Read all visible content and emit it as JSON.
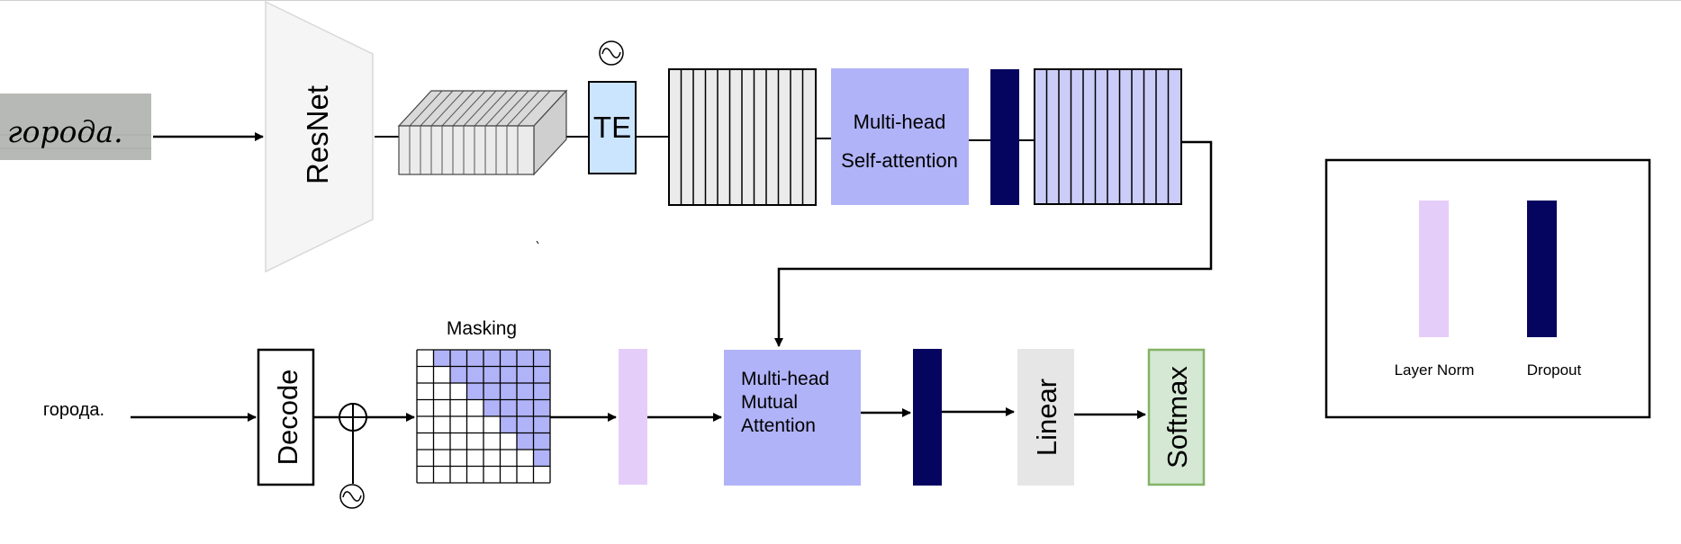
{
  "encoder": {
    "input_word": "города.",
    "backbone_label": "ResNet",
    "te_label": "TE",
    "attention_label_line1": "Multi-head",
    "attention_label_line2": "Self-attention"
  },
  "decoder": {
    "input_text": "города.",
    "decode_label": "Decode",
    "masking_label": "Masking",
    "mutual_line1": "Multi-head",
    "mutual_line2": "Mutual",
    "mutual_line3": "Attention",
    "linear_label": "Linear",
    "softmax_label": "Softmax"
  },
  "legend": {
    "layer_norm_label": "Layer Norm",
    "dropout_label": "Dropout"
  },
  "colors": {
    "layer_norm": "#e5cdfa",
    "dropout": "#050560",
    "attention": "#b0b3f7",
    "te": "#cce5ff",
    "gray_block": "#ebebeb",
    "softmax_fill": "#d5e8d4",
    "softmax_border": "#82b366",
    "resnet_fill": "#f5f5f5"
  },
  "icons": {
    "positional_encoding": "sine-wave-icon",
    "adder": "circle-plus-icon"
  }
}
